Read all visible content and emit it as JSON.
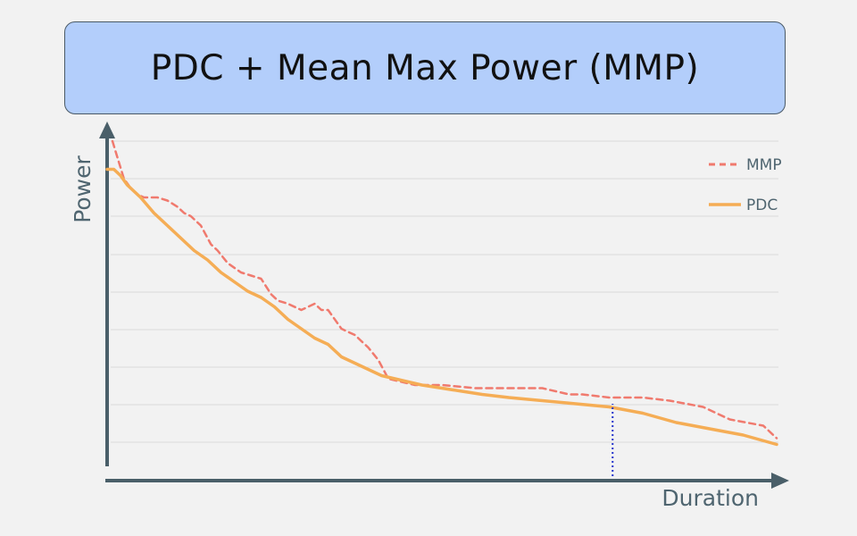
{
  "chart_data": {
    "type": "line",
    "title": "PDC + Mean Max Power (MMP)",
    "xlabel": "Duration",
    "ylabel": "Power",
    "xlim": [
      0,
      100
    ],
    "ylim": [
      0,
      100
    ],
    "grid": true,
    "legend_position": "top-right",
    "colors": {
      "mmp": "#f07a6e",
      "pdc": "#f5ad55",
      "axis": "#4a5f69",
      "grid": "#d9d9d9",
      "marker": "#2233cc"
    },
    "series": [
      {
        "name": "MMP",
        "style": "dashed",
        "x": [
          0.8,
          1.5,
          2.5,
          3.5,
          4.5,
          5.5,
          6.5,
          7.5,
          9,
          10.5,
          11.5,
          12.5,
          14,
          15.5,
          16.5,
          18,
          20,
          21.5,
          23,
          24.5,
          25.5,
          27,
          29,
          31,
          32,
          33,
          35,
          37,
          39,
          40.5,
          42,
          44,
          46,
          48,
          50,
          55,
          60,
          65,
          69,
          71,
          75,
          80,
          84,
          89,
          93,
          98,
          100
        ],
        "y": [
          100,
          95,
          88,
          85,
          83,
          82,
          82,
          82,
          81,
          79,
          77,
          76,
          73,
          67,
          65,
          61,
          58,
          57,
          56,
          51,
          49,
          48,
          46,
          48,
          46,
          46,
          40,
          38,
          34,
          30,
          24,
          23,
          22,
          22,
          22,
          21,
          21,
          21,
          19,
          19,
          18,
          18,
          17,
          15,
          11,
          9,
          5
        ]
      },
      {
        "name": "PDC",
        "style": "solid",
        "x": [
          0,
          1,
          2,
          3,
          5,
          7,
          9,
          11,
          13,
          15,
          17,
          19,
          21,
          23,
          25,
          27,
          29,
          31,
          33,
          35,
          37,
          39,
          41,
          43,
          45,
          47,
          50,
          53,
          56,
          60,
          65,
          70,
          75,
          80,
          85,
          90,
          95,
          100
        ],
        "y": [
          91,
          91,
          89,
          86,
          82,
          77,
          73,
          69,
          65,
          62,
          58,
          55,
          52,
          50,
          47,
          43,
          40,
          37,
          35,
          31,
          29,
          27,
          25,
          24,
          23,
          22,
          21,
          20,
          19,
          18,
          17,
          16,
          15,
          13,
          10,
          8,
          6,
          3
        ]
      }
    ],
    "annotations": [
      {
        "type": "vertical-dotted-line",
        "x": 75.5,
        "y_from": 0,
        "y_to": 16
      }
    ]
  }
}
